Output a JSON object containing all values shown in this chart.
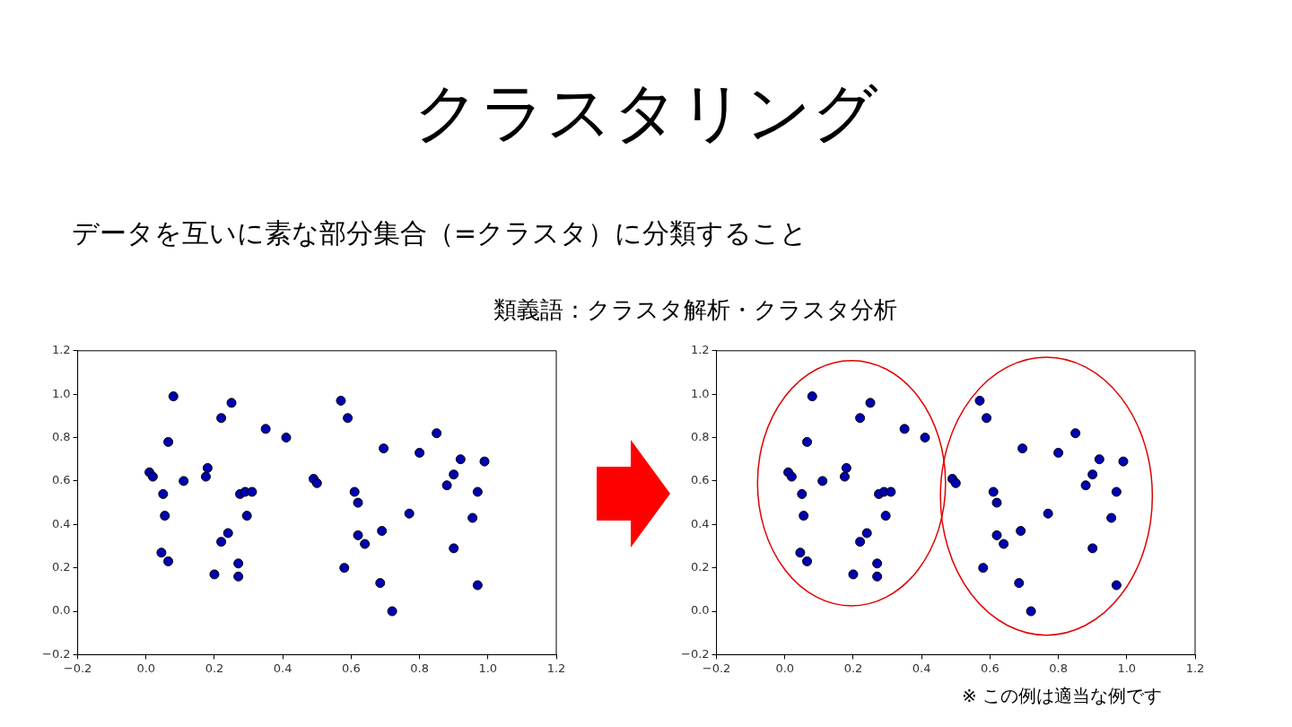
{
  "chart_data": [
    {
      "type": "scatter",
      "title": "クラスタリング",
      "subtitle": "データを互いに素な部分集合（=クラスタ）に分類すること",
      "annotations": [
        "類義語：クラスタ解析・クラスタ分析"
      ],
      "x": [
        0.01,
        0.02,
        0.08,
        0.065,
        0.05,
        0.055,
        0.045,
        0.065,
        0.11,
        0.175,
        0.18,
        0.22,
        0.25,
        0.35,
        0.41,
        0.275,
        0.29,
        0.31,
        0.295,
        0.24,
        0.22,
        0.2,
        0.27,
        0.27,
        0.49,
        0.5,
        0.57,
        0.59,
        0.61,
        0.62,
        0.62,
        0.64,
        0.58,
        0.69,
        0.685,
        0.72,
        0.695,
        0.77,
        0.8,
        0.85,
        0.88,
        0.9,
        0.92,
        0.99,
        0.97,
        0.955,
        0.9,
        0.97
      ],
      "values": [
        0.64,
        0.62,
        0.99,
        0.78,
        0.54,
        0.44,
        0.27,
        0.23,
        0.6,
        0.62,
        0.66,
        0.89,
        0.96,
        0.84,
        0.8,
        0.54,
        0.55,
        0.55,
        0.44,
        0.36,
        0.32,
        0.17,
        0.22,
        0.16,
        0.61,
        0.59,
        0.97,
        0.89,
        0.55,
        0.5,
        0.35,
        0.31,
        0.2,
        0.37,
        0.13,
        0.0,
        0.75,
        0.45,
        0.73,
        0.82,
        0.58,
        0.63,
        0.7,
        0.69,
        0.55,
        0.43,
        0.29,
        0.12
      ],
      "color": "#0000b0",
      "marker": "circle",
      "grid": false,
      "legend": false,
      "xlim": [
        -0.2,
        1.2
      ],
      "xticks": [
        {
          "value": -0.2,
          "label": "−0.2"
        },
        {
          "value": 0,
          "label": "0.0"
        },
        0.2,
        0.4,
        0.6,
        0.8,
        {
          "value": 1,
          "label": "1.0"
        },
        1.2
      ],
      "ylim": [
        -0.2,
        1.2
      ],
      "yticks": [
        {
          "value": -0.2,
          "label": "−0.2"
        },
        {
          "value": 0,
          "label": "0.0"
        },
        0.2,
        0.4,
        0.6,
        0.8,
        {
          "value": 1,
          "label": "1.0"
        },
        1.2
      ]
    },
    {
      "type": "scatter",
      "annotations": [
        "※ この例は適当な例です"
      ],
      "x": [
        0.01,
        0.02,
        0.08,
        0.065,
        0.05,
        0.055,
        0.045,
        0.065,
        0.11,
        0.175,
        0.18,
        0.22,
        0.25,
        0.35,
        0.41,
        0.275,
        0.29,
        0.31,
        0.295,
        0.24,
        0.22,
        0.2,
        0.27,
        0.27,
        0.49,
        0.5,
        0.57,
        0.59,
        0.61,
        0.62,
        0.62,
        0.64,
        0.58,
        0.69,
        0.685,
        0.72,
        0.695,
        0.77,
        0.8,
        0.85,
        0.88,
        0.9,
        0.92,
        0.99,
        0.97,
        0.955,
        0.9,
        0.97
      ],
      "values": [
        0.64,
        0.62,
        0.99,
        0.78,
        0.54,
        0.44,
        0.27,
        0.23,
        0.6,
        0.62,
        0.66,
        0.89,
        0.96,
        0.84,
        0.8,
        0.54,
        0.55,
        0.55,
        0.44,
        0.36,
        0.32,
        0.17,
        0.22,
        0.16,
        0.61,
        0.59,
        0.97,
        0.89,
        0.55,
        0.5,
        0.35,
        0.31,
        0.2,
        0.37,
        0.13,
        0.0,
        0.75,
        0.45,
        0.73,
        0.82,
        0.58,
        0.63,
        0.7,
        0.69,
        0.55,
        0.43,
        0.29,
        0.12
      ],
      "color": "#0000b0",
      "marker": "circle",
      "grid": false,
      "legend": false,
      "xlim": [
        -0.2,
        1.2
      ],
      "xticks": [
        {
          "value": -0.2,
          "label": "−0.2"
        },
        {
          "value": 0,
          "label": "0.0"
        },
        0.2,
        0.4,
        0.6,
        0.8,
        {
          "value": 1,
          "label": "1.0"
        },
        1.2
      ],
      "ylim": [
        -0.2,
        1.2
      ],
      "yticks": [
        {
          "value": -0.2,
          "label": "−0.2"
        },
        {
          "value": 0,
          "label": "0.0"
        },
        0.2,
        0.4,
        0.6,
        0.8,
        {
          "value": 1,
          "label": "1.0"
        },
        1.2
      ]
    }
  ]
}
